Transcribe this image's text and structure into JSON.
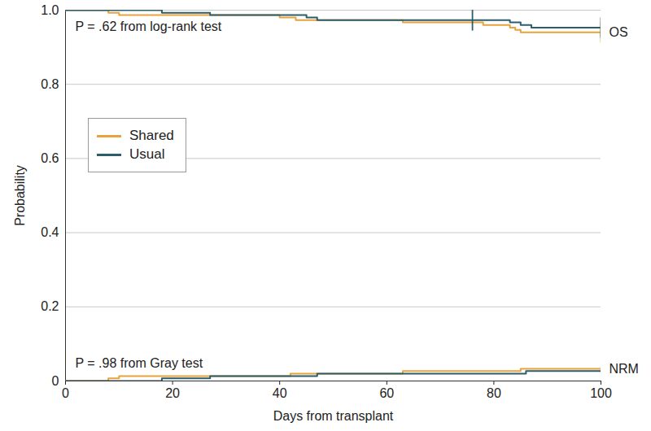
{
  "chart_data": {
    "type": "line",
    "x_label": "Days from transplant",
    "y_label": "Probability",
    "xlim": [
      0,
      100
    ],
    "xticks": [
      0,
      20,
      40,
      60,
      80,
      100
    ],
    "ylim": [
      0,
      1
    ],
    "yticks": [
      0,
      0.2,
      0.4,
      0.6,
      0.8,
      {
        "value": 1,
        "label": "1.0"
      }
    ],
    "grid": "y",
    "legend": "left",
    "line_style": "step",
    "groups": [
      {
        "label": "OS",
        "test": "P = .62 from log-rank test"
      },
      {
        "label": "NRM",
        "test": "P = .98 from Gray test"
      }
    ],
    "series": [
      {
        "name": "Shared",
        "group": "OS",
        "color": "#e8a33d",
        "x": [
          0,
          8,
          10,
          40,
          43,
          63,
          78,
          83,
          84,
          85,
          100
        ],
        "values": [
          1.0,
          0.993,
          0.987,
          0.98,
          0.973,
          0.967,
          0.96,
          0.953,
          0.947,
          0.94,
          0.94
        ],
        "censored": [
          100
        ]
      },
      {
        "name": "Usual",
        "group": "OS",
        "color": "#2c5d6b",
        "x": [
          0,
          18,
          27,
          45,
          47,
          83,
          85,
          87,
          100
        ],
        "values": [
          1.0,
          0.993,
          0.987,
          0.98,
          0.973,
          0.967,
          0.96,
          0.953,
          0.953
        ],
        "censored": [
          76,
          100
        ]
      },
      {
        "name": "Shared",
        "group": "NRM",
        "color": "#e8a33d",
        "x": [
          0,
          8,
          10,
          42,
          63,
          85,
          100
        ],
        "values": [
          0,
          0.007,
          0.013,
          0.02,
          0.027,
          0.033,
          0.033
        ]
      },
      {
        "name": "Usual",
        "group": "NRM",
        "color": "#2c5d6b",
        "x": [
          0,
          18,
          27,
          47,
          86,
          100
        ],
        "values": [
          0,
          0.007,
          0.013,
          0.02,
          0.027,
          0.027
        ]
      }
    ]
  }
}
